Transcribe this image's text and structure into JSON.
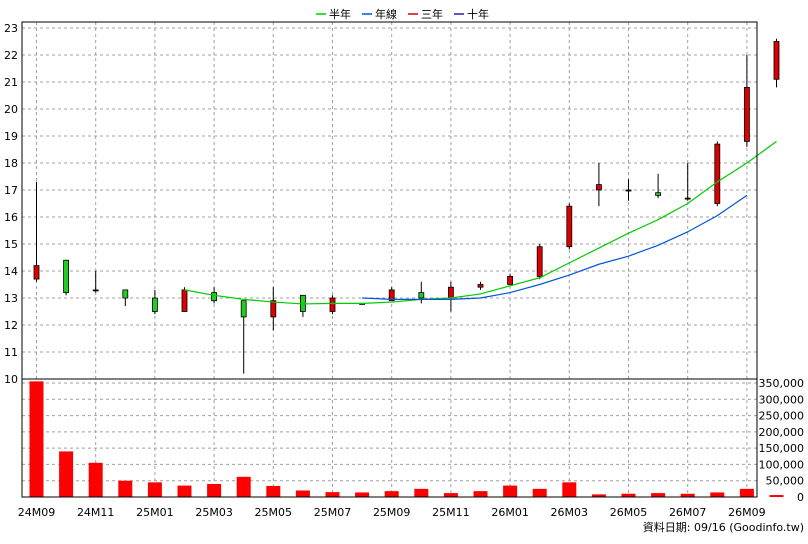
{
  "legend": [
    {
      "label": "半年",
      "color": "#00cc00"
    },
    {
      "label": "年線",
      "color": "#0055dd"
    },
    {
      "label": "三年",
      "color": "#dd0000"
    },
    {
      "label": "十年",
      "color": "#2222aa"
    }
  ],
  "footer": "資料日期: 09/16  (Goodinfo.tw)",
  "chart_data": {
    "type": "candlestick",
    "price_ylim": [
      10,
      23
    ],
    "price_ticks": [
      "10",
      "11",
      "12",
      "13",
      "14",
      "15",
      "16",
      "17",
      "18",
      "19",
      "20",
      "21",
      "22",
      "23"
    ],
    "volume_ylim": [
      0,
      350000
    ],
    "volume_ticks": [
      "0",
      "50,000",
      "100,000",
      "150,000",
      "200,000",
      "250,000",
      "300,000",
      "350,000"
    ],
    "x_ticks": [
      {
        "i": 0,
        "label": "24M09"
      },
      {
        "i": 2,
        "label": "24M11"
      },
      {
        "i": 4,
        "label": "25M01"
      },
      {
        "i": 6,
        "label": "25M03"
      },
      {
        "i": 8,
        "label": "25M05"
      },
      {
        "i": 10,
        "label": "25M07"
      },
      {
        "i": 12,
        "label": "25M09"
      },
      {
        "i": 14,
        "label": "25M11"
      },
      {
        "i": 16,
        "label": "26M01"
      },
      {
        "i": 18,
        "label": "26M03"
      },
      {
        "i": 20,
        "label": "26M05"
      },
      {
        "i": 22,
        "label": "26M07"
      },
      {
        "i": 24,
        "label": "26M09"
      }
    ],
    "candles": [
      {
        "open": 13.7,
        "high": 17.3,
        "low": 13.6,
        "close": 14.2,
        "volume": 355000
      },
      {
        "open": 14.4,
        "high": 14.4,
        "low": 13.1,
        "close": 13.2,
        "volume": 140000
      },
      {
        "open": 13.3,
        "high": 14.0,
        "low": 13.2,
        "close": 13.3,
        "volume": 105000
      },
      {
        "open": 13.3,
        "high": 13.3,
        "low": 12.7,
        "close": 13.0,
        "volume": 50000
      },
      {
        "open": 13.0,
        "high": 13.3,
        "low": 12.4,
        "close": 12.5,
        "volume": 45000
      },
      {
        "open": 12.5,
        "high": 13.4,
        "low": 12.5,
        "close": 13.3,
        "volume": 35000
      },
      {
        "open": 13.2,
        "high": 13.4,
        "low": 12.8,
        "close": 12.9,
        "volume": 40000
      },
      {
        "open": 12.9,
        "high": 12.9,
        "low": 10.2,
        "close": 12.3,
        "volume": 62000
      },
      {
        "open": 12.3,
        "high": 13.4,
        "low": 11.8,
        "close": 12.9,
        "volume": 34000
      },
      {
        "open": 13.1,
        "high": 13.1,
        "low": 12.3,
        "close": 12.5,
        "volume": 20000
      },
      {
        "open": 12.5,
        "high": 13.1,
        "low": 12.4,
        "close": 13.0,
        "volume": 15000
      },
      {
        "open": 12.8,
        "high": 12.8,
        "low": 12.8,
        "close": 12.8,
        "volume": 14000
      },
      {
        "open": 12.9,
        "high": 13.4,
        "low": 12.9,
        "close": 13.3,
        "volume": 18000
      },
      {
        "open": 13.2,
        "high": 13.6,
        "low": 12.8,
        "close": 13.0,
        "volume": 25000
      },
      {
        "open": 13.0,
        "high": 13.6,
        "low": 12.5,
        "close": 13.4,
        "volume": 12000
      },
      {
        "open": 13.4,
        "high": 13.6,
        "low": 13.3,
        "close": 13.5,
        "volume": 18000
      },
      {
        "open": 13.5,
        "high": 13.9,
        "low": 13.5,
        "close": 13.8,
        "volume": 35000
      },
      {
        "open": 13.8,
        "high": 15.0,
        "low": 13.7,
        "close": 14.9,
        "volume": 25000
      },
      {
        "open": 14.9,
        "high": 16.5,
        "low": 14.8,
        "close": 16.4,
        "volume": 45000
      },
      {
        "open": 17.0,
        "high": 18.0,
        "low": 16.4,
        "close": 17.2,
        "volume": 8000
      },
      {
        "open": 17.0,
        "high": 17.4,
        "low": 16.6,
        "close": 17.0,
        "volume": 10000
      },
      {
        "open": 16.9,
        "high": 17.6,
        "low": 16.7,
        "close": 16.8,
        "volume": 12000
      },
      {
        "open": 16.7,
        "high": 18.0,
        "low": 16.6,
        "close": 16.7,
        "volume": 10000
      },
      {
        "open": 16.5,
        "high": 18.8,
        "low": 16.4,
        "close": 18.7,
        "volume": 14000
      },
      {
        "open": 18.8,
        "high": 22.0,
        "low": 18.6,
        "close": 20.8,
        "volume": 25000
      },
      {
        "open": 21.1,
        "high": 22.6,
        "low": 20.8,
        "close": 22.5,
        "volume": 6000
      }
    ],
    "series": [
      {
        "name": "半年",
        "color": "#00cc00",
        "points": [
          [
            5,
            13.3
          ],
          [
            6,
            13.1
          ],
          [
            7,
            12.95
          ],
          [
            8,
            12.85
          ],
          [
            9,
            12.78
          ],
          [
            10,
            12.8
          ],
          [
            11,
            12.8
          ],
          [
            12,
            12.85
          ],
          [
            13,
            12.95
          ],
          [
            14,
            13.0
          ],
          [
            15,
            13.15
          ],
          [
            16,
            13.45
          ],
          [
            17,
            13.75
          ],
          [
            18,
            14.3
          ],
          [
            19,
            14.85
          ],
          [
            20,
            15.4
          ],
          [
            21,
            15.9
          ],
          [
            22,
            16.5
          ],
          [
            23,
            17.3
          ],
          [
            24,
            18.0
          ],
          [
            25,
            18.8
          ]
        ]
      },
      {
        "name": "年線",
        "color": "#0055dd",
        "points": [
          [
            11,
            13.0
          ],
          [
            12,
            12.95
          ],
          [
            13,
            12.95
          ],
          [
            14,
            12.95
          ],
          [
            15,
            13.0
          ],
          [
            16,
            13.2
          ],
          [
            17,
            13.5
          ],
          [
            18,
            13.85
          ],
          [
            19,
            14.25
          ],
          [
            20,
            14.55
          ],
          [
            21,
            14.95
          ],
          [
            22,
            15.45
          ],
          [
            23,
            16.05
          ],
          [
            24,
            16.8
          ]
        ]
      }
    ]
  }
}
